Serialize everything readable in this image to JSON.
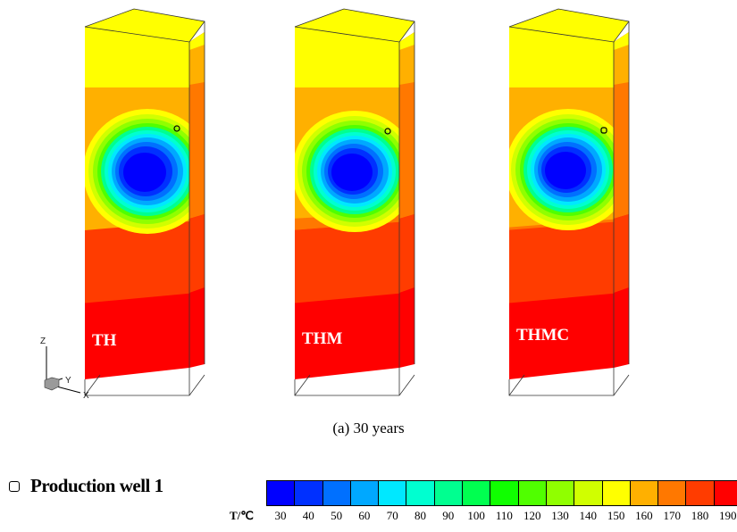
{
  "panels": [
    {
      "label": "TH"
    },
    {
      "label": "THM"
    },
    {
      "label": "THMC"
    }
  ],
  "axes": {
    "z": "Z",
    "y": "Y",
    "x": "X"
  },
  "caption": "(a)  30 years",
  "legend": {
    "well_label": "Production well 1",
    "unit_label": "T/℃",
    "ticks": [
      "30",
      "40",
      "50",
      "60",
      "70",
      "80",
      "90",
      "100",
      "110",
      "120",
      "130",
      "140",
      "150",
      "160",
      "170",
      "180",
      "190"
    ],
    "colors": [
      "#0000ff",
      "#0030ff",
      "#0070ff",
      "#00a8ff",
      "#00e8ff",
      "#00ffd0",
      "#00ff90",
      "#00ff50",
      "#10ff00",
      "#50ff00",
      "#90ff00",
      "#d0ff00",
      "#ffff00",
      "#ffb000",
      "#ff7800",
      "#ff3c00",
      "#ff0000"
    ]
  }
}
